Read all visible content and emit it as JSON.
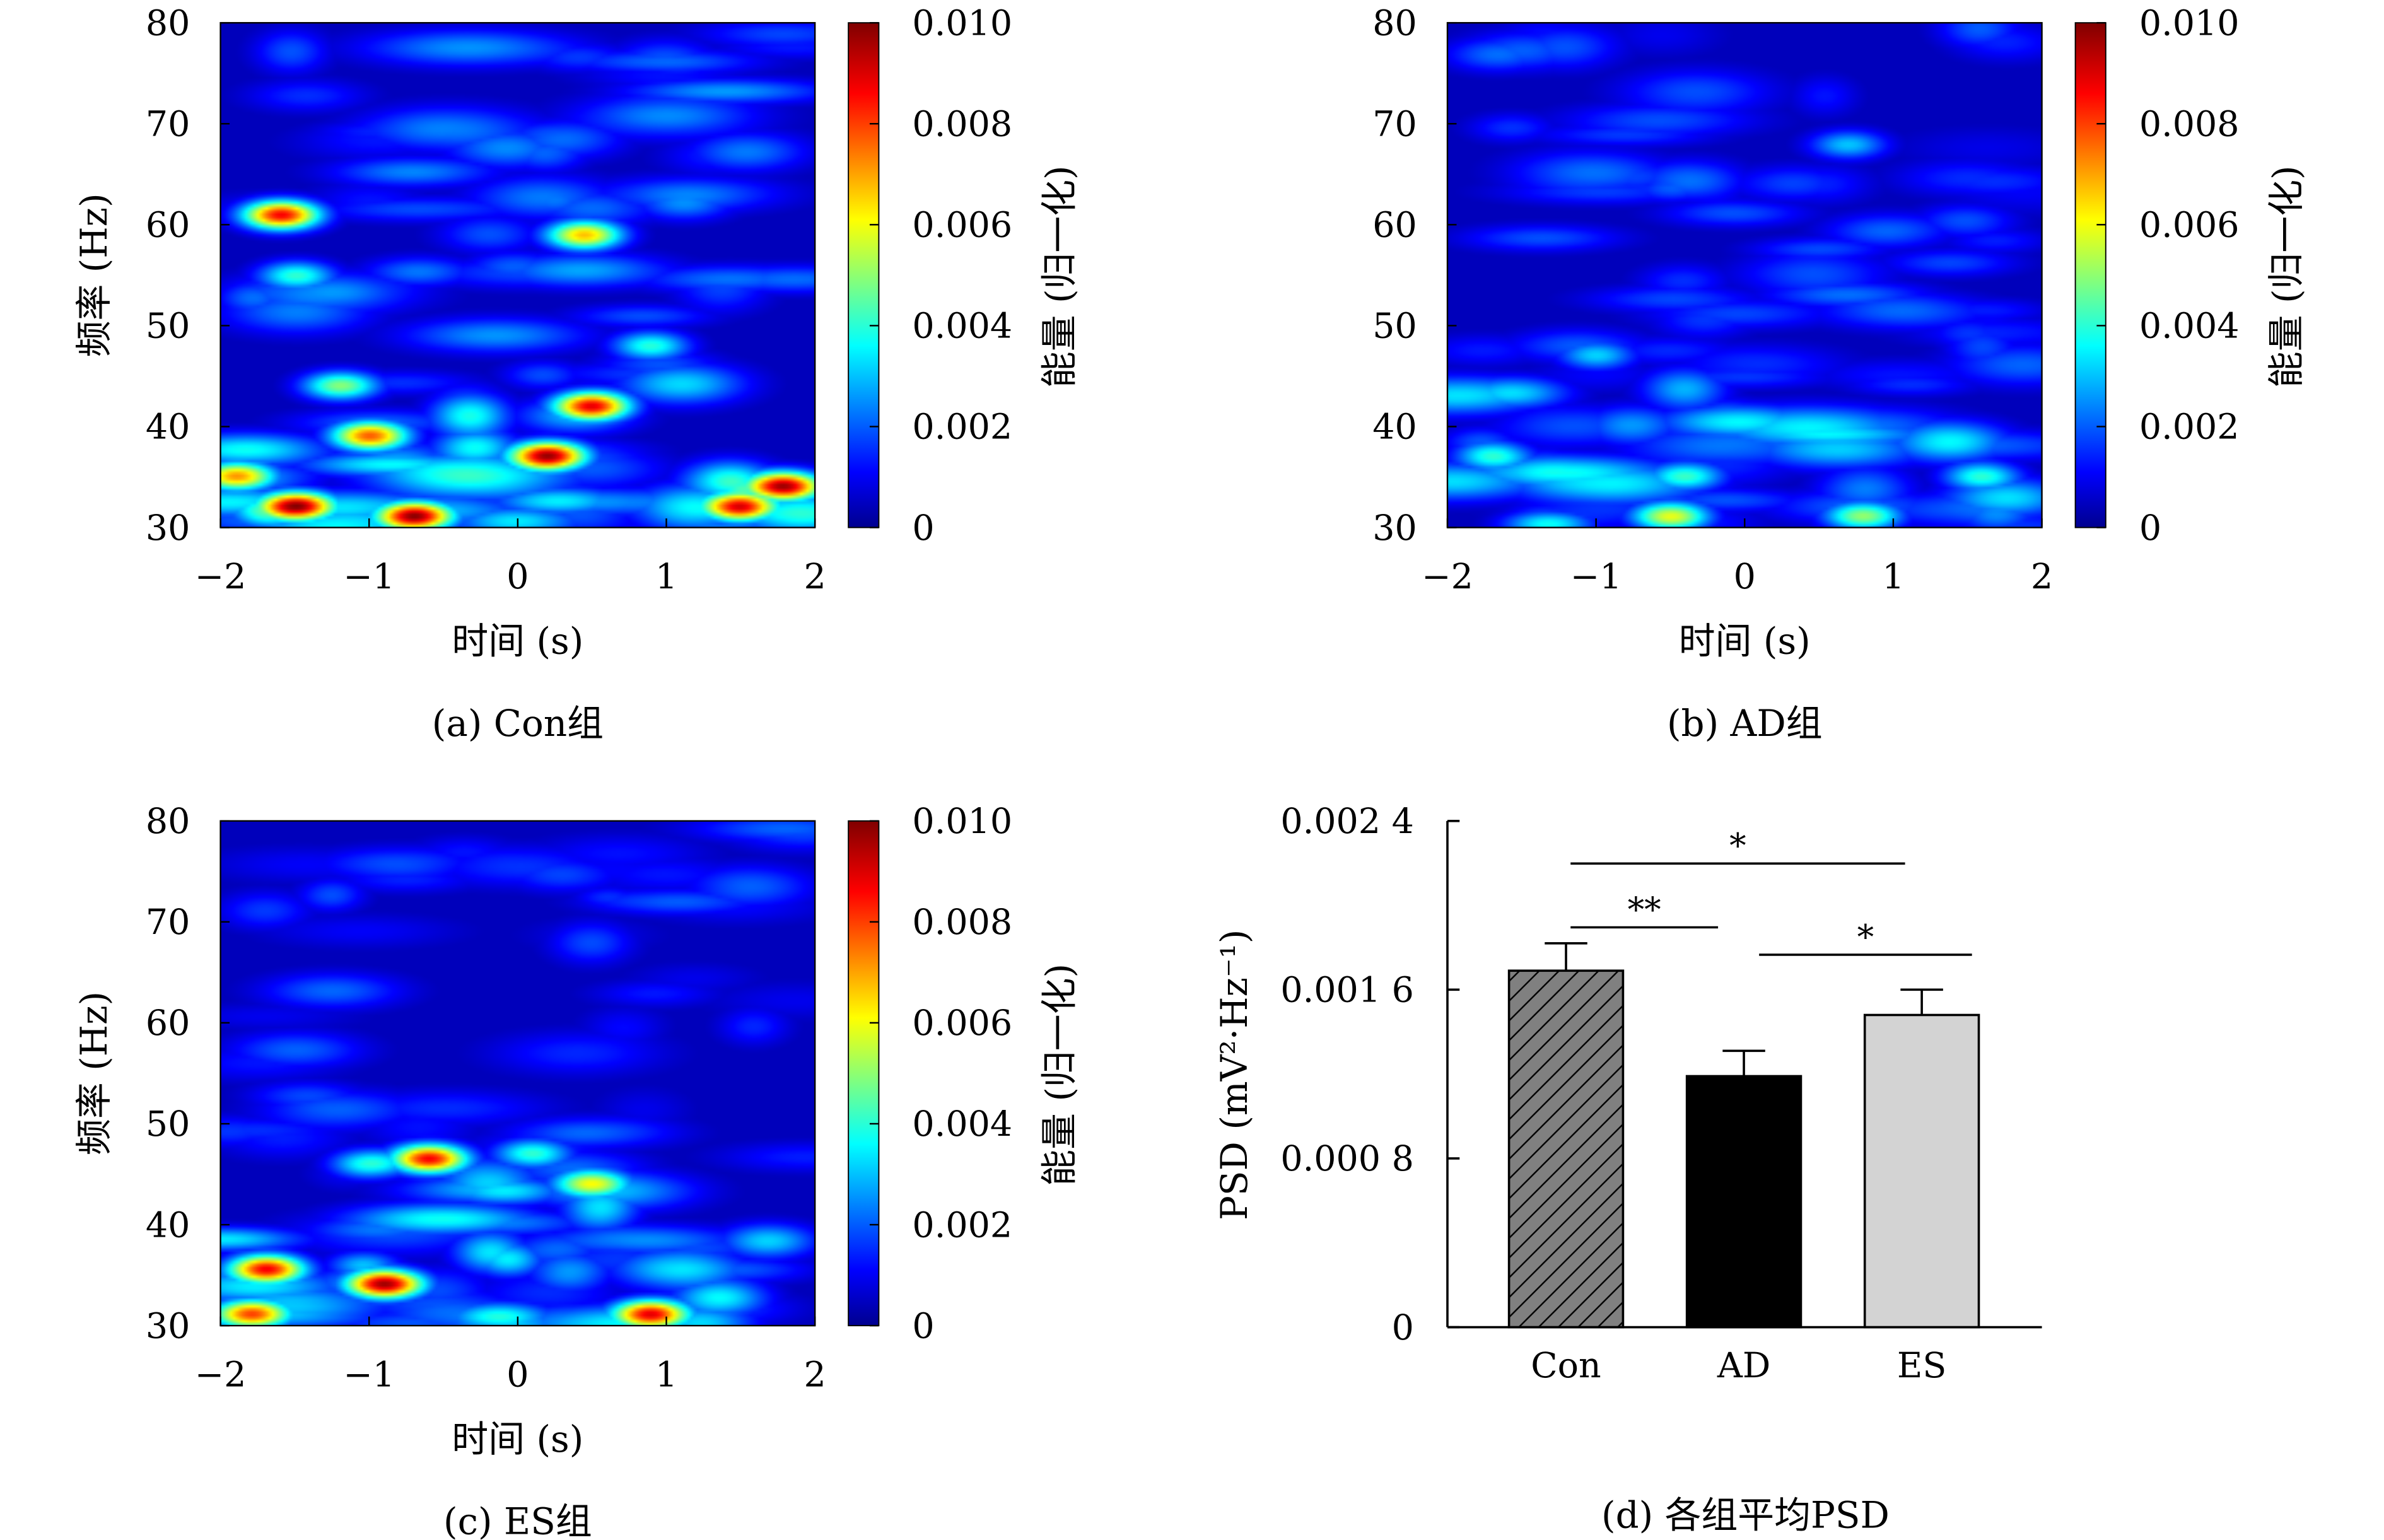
{
  "colormap": "jet",
  "chart_data": [
    {
      "type": "heatmap",
      "caption": "(a) Con组",
      "xlabel": "时间 (s)",
      "ylabel": "频率 (Hz)",
      "colorbar_label": "能量 (归一化)",
      "xlim": [
        -2,
        2
      ],
      "ylim": [
        30,
        80
      ],
      "clim": [
        0,
        0.01
      ],
      "xticks": [
        "−2",
        "−1",
        "0",
        "1",
        "2"
      ],
      "yticks": [
        "30",
        "40",
        "50",
        "60",
        "70",
        "80"
      ],
      "cticks": [
        "0",
        "0.002",
        "0.004",
        "0.006",
        "0.008",
        "0.010"
      ],
      "hotspots": [
        {
          "t": -1.6,
          "f": 61,
          "v": 0.009
        },
        {
          "t": 0.45,
          "f": 59,
          "v": 0.007
        },
        {
          "t": -1.0,
          "f": 39,
          "v": 0.008
        },
        {
          "t": 0.2,
          "f": 37,
          "v": 0.01
        },
        {
          "t": 0.5,
          "f": 42,
          "v": 0.009
        },
        {
          "t": -1.5,
          "f": 32,
          "v": 0.01
        },
        {
          "t": -0.7,
          "f": 31,
          "v": 0.01
        },
        {
          "t": 1.8,
          "f": 34,
          "v": 0.01
        },
        {
          "t": 1.5,
          "f": 32,
          "v": 0.009
        },
        {
          "t": -1.9,
          "f": 35,
          "v": 0.007
        },
        {
          "t": -1.2,
          "f": 44,
          "v": 0.005
        },
        {
          "t": -1.5,
          "f": 55,
          "v": 0.004
        },
        {
          "t": 0.9,
          "f": 48,
          "v": 0.004
        }
      ],
      "background_level": 0.0015
    },
    {
      "type": "heatmap",
      "caption": "(b) AD组",
      "xlabel": "时间 (s)",
      "ylabel": "频率 (Hz)",
      "colorbar_label": "能量 (归一化)",
      "xlim": [
        -2,
        2
      ],
      "ylim": [
        30,
        80
      ],
      "clim": [
        0,
        0.01
      ],
      "xticks": [
        "−2",
        "−1",
        "0",
        "1",
        "2"
      ],
      "yticks": [
        "30",
        "40",
        "50",
        "60",
        "70",
        "80"
      ],
      "cticks": [
        "0",
        "0.002",
        "0.004",
        "0.006",
        "0.008",
        "0.010"
      ],
      "hotspots": [
        {
          "t": -0.5,
          "f": 31,
          "v": 0.006
        },
        {
          "t": 0.8,
          "f": 31,
          "v": 0.005
        },
        {
          "t": -1.7,
          "f": 37,
          "v": 0.004
        },
        {
          "t": 1.6,
          "f": 35,
          "v": 0.004
        },
        {
          "t": -0.4,
          "f": 35,
          "v": 0.004
        },
        {
          "t": 0.7,
          "f": 68,
          "v": 0.003
        },
        {
          "t": -1.0,
          "f": 47,
          "v": 0.003
        }
      ],
      "background_level": 0.0012
    },
    {
      "type": "heatmap",
      "caption": "(c) ES组",
      "xlabel": "时间 (s)",
      "ylabel": "频率 (Hz)",
      "colorbar_label": "能量 (归一化)",
      "xlim": [
        -2,
        2
      ],
      "ylim": [
        30,
        80
      ],
      "clim": [
        0,
        0.01
      ],
      "xticks": [
        "−2",
        "−1",
        "0",
        "1",
        "2"
      ],
      "yticks": [
        "30",
        "40",
        "50",
        "60",
        "70",
        "80"
      ],
      "cticks": [
        "0",
        "0.002",
        "0.004",
        "0.006",
        "0.008",
        "0.010"
      ],
      "hotspots": [
        {
          "t": -0.9,
          "f": 34,
          "v": 0.01
        },
        {
          "t": -1.7,
          "f": 35.5,
          "v": 0.009
        },
        {
          "t": -0.6,
          "f": 46.5,
          "v": 0.009
        },
        {
          "t": 0.9,
          "f": 31,
          "v": 0.009
        },
        {
          "t": -1.8,
          "f": 31,
          "v": 0.008
        },
        {
          "t": 0.5,
          "f": 44,
          "v": 0.006
        },
        {
          "t": 0.1,
          "f": 47,
          "v": 0.004
        },
        {
          "t": -1.0,
          "f": 46,
          "v": 0.004
        }
      ],
      "background_level": 0.0012
    },
    {
      "type": "bar",
      "caption": "(d) 各组平均PSD",
      "ylabel": "PSD (mV²·Hz⁻¹)",
      "categories": [
        "Con",
        "AD",
        "ES"
      ],
      "values": [
        0.00169,
        0.00119,
        0.00148
      ],
      "errors": [
        0.00013,
        0.00012,
        0.00012
      ],
      "fills": [
        "#808080",
        "#000000",
        "#d3d3d3"
      ],
      "hatch": [
        "diagonal",
        "none",
        "none"
      ],
      "ylim": [
        0,
        0.0024
      ],
      "yticks": [
        "0",
        "0.000 8",
        "0.001 6",
        "0.002 4"
      ],
      "significance": [
        {
          "from": "Con",
          "to": "ES",
          "label": "*"
        },
        {
          "from": "Con",
          "to": "AD",
          "label": "**"
        },
        {
          "from": "AD",
          "to": "ES",
          "label": "*"
        }
      ]
    }
  ]
}
